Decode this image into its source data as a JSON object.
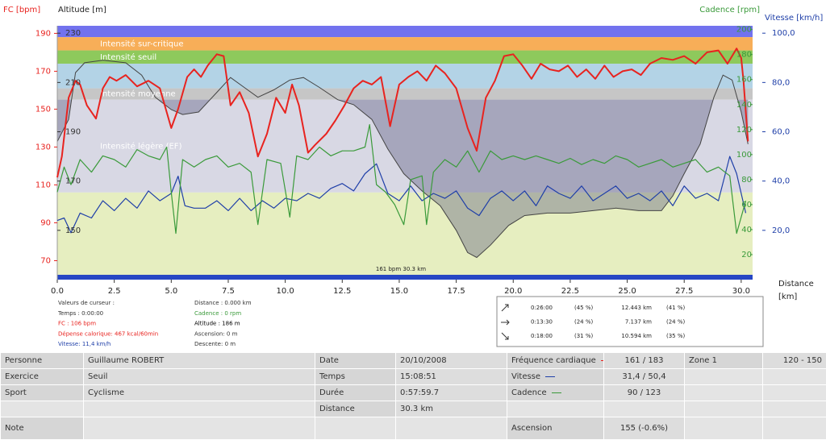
{
  "chart_data": {
    "type": "line",
    "ylabel": "FC [bpm]",
    "y2label": "Altitude [m]",
    "y3label": "Cadence [rpm]",
    "y4label": "Vitesse [km/h]",
    "xlabel": "Distance",
    "xunit": "[km]",
    "annotation": "161 bpm 30.3 km",
    "xlim": [
      0,
      30.5
    ],
    "xticks": [
      {
        "value": 0,
        "label": "0.0"
      },
      2.5,
      {
        "value": 5,
        "label": "5.0"
      },
      7.5,
      {
        "value": 10,
        "label": "10.0"
      },
      12.5,
      {
        "value": 15,
        "label": "15.0"
      },
      17.5,
      {
        "value": 20,
        "label": "20.0"
      },
      22.5,
      {
        "value": 25,
        "label": "25.0"
      },
      27.5,
      {
        "value": 30,
        "label": "30.0"
      }
    ],
    "ylim": [
      60,
      194
    ],
    "yticks": [
      190,
      170,
      150,
      130,
      110,
      90,
      70
    ],
    "y2lim": [
      130,
      233
    ],
    "y2ticks": [
      230,
      210,
      190,
      170,
      150
    ],
    "y3lim": [
      0,
      203
    ],
    "y3ticks": [
      200,
      180,
      160,
      140,
      120,
      100,
      80,
      60,
      40,
      20
    ],
    "y4lim": [
      0,
      103
    ],
    "y4ticks": [
      {
        "value": 100,
        "label": "100,0"
      },
      {
        "value": 80,
        "label": "80,0"
      },
      {
        "value": 60,
        "label": "60,0"
      },
      {
        "value": 40,
        "label": "40,0"
      },
      {
        "value": 20,
        "label": "20,0"
      }
    ],
    "zones": [
      {
        "from": 188,
        "to": 194,
        "color": "#7272ee"
      },
      {
        "from": 181,
        "to": 188,
        "color": "#f7ae58",
        "label": "Intensité sur-critique"
      },
      {
        "from": 174,
        "to": 181,
        "color": "#8ec95c",
        "label": "Intensité seuil"
      },
      {
        "from": 161,
        "to": 174,
        "color": "#b3d3e6"
      },
      {
        "from": 155,
        "to": 161,
        "color": "#c6c6c6",
        "label": "Intensité moyenne"
      },
      {
        "from": 106,
        "to": 155,
        "color": "#d8d8e4",
        "label": "Intensité légère (EF)"
      },
      {
        "from": 60,
        "to": 106,
        "color": "#e6eec0"
      }
    ],
    "series": [
      {
        "name": "Fréquence cardiaque",
        "color": "#e8231f",
        "axis": "y",
        "x": [
          0,
          0.2,
          0.5,
          0.8,
          1,
          1.3,
          1.7,
          2,
          2.3,
          2.6,
          3,
          3.5,
          4,
          4.5,
          5,
          5.3,
          5.7,
          6,
          6.3,
          6.6,
          7,
          7.3,
          7.6,
          8,
          8.4,
          8.8,
          9.2,
          9.6,
          10,
          10.3,
          10.6,
          11,
          11.3,
          11.8,
          12.2,
          12.6,
          13,
          13.4,
          13.8,
          14.2,
          14.6,
          15,
          15.4,
          15.8,
          16.2,
          16.6,
          17,
          17.5,
          18,
          18.4,
          18.8,
          19.2,
          19.6,
          20,
          20.4,
          20.8,
          21.2,
          21.6,
          22,
          22.4,
          22.8,
          23.2,
          23.6,
          24,
          24.4,
          24.8,
          25.2,
          25.6,
          26,
          26.5,
          27,
          27.5,
          28,
          28.5,
          29,
          29.4,
          29.8,
          30,
          30.1,
          30.3
        ],
        "values": [
          114,
          125,
          156,
          165,
          163,
          152,
          145,
          161,
          167,
          165,
          168,
          162,
          165,
          161,
          140,
          150,
          167,
          171,
          167,
          173,
          179,
          178,
          152,
          159,
          148,
          125,
          137,
          156,
          148,
          163,
          152,
          127,
          131,
          137,
          144,
          152,
          161,
          165,
          163,
          167,
          141,
          163,
          167,
          170,
          165,
          173,
          169,
          161,
          140,
          128,
          156,
          165,
          178,
          179,
          173,
          166,
          174,
          171,
          170,
          173,
          167,
          171,
          166,
          173,
          167,
          170,
          171,
          168,
          174,
          177,
          176,
          178,
          174,
          180,
          181,
          174,
          182,
          177,
          165,
          133
        ]
      },
      {
        "name": "Vitesse",
        "color": "#1f3fa8",
        "axis": "y4",
        "x": [
          0,
          0.3,
          0.6,
          1,
          1.5,
          2,
          2.5,
          3,
          3.5,
          4,
          4.5,
          5,
          5.3,
          5.6,
          6,
          6.5,
          7,
          7.5,
          8,
          8.5,
          9,
          9.5,
          10,
          10.5,
          11,
          11.5,
          12,
          12.5,
          13,
          13.5,
          14,
          14.5,
          15,
          15.5,
          16,
          16.5,
          17,
          17.5,
          18,
          18.5,
          19,
          19.5,
          20,
          20.5,
          21,
          21.5,
          22,
          22.5,
          23,
          23.5,
          24,
          24.5,
          25,
          25.5,
          26,
          26.5,
          27,
          27.5,
          28,
          28.5,
          29,
          29.5,
          29.8,
          30.2
        ],
        "values": [
          24,
          25,
          19,
          27,
          25,
          32,
          28,
          33,
          29,
          36,
          32,
          35,
          42,
          30,
          29,
          29,
          32,
          28,
          33,
          28,
          32,
          29,
          33,
          32,
          35,
          33,
          37,
          39,
          36,
          43,
          47,
          35,
          32,
          38,
          32,
          35,
          33,
          36,
          29,
          26,
          33,
          36,
          32,
          36,
          30,
          38,
          35,
          33,
          38,
          32,
          35,
          38,
          33,
          35,
          32,
          36,
          30,
          38,
          33,
          35,
          32,
          50,
          43,
          27
        ]
      },
      {
        "name": "Cadence",
        "color": "#3a9a3a",
        "axis": "y3",
        "x": [
          0,
          0.3,
          0.6,
          1,
          1.5,
          2,
          2.5,
          3,
          3.5,
          4,
          4.5,
          4.8,
          5,
          5.2,
          5.5,
          6,
          6.5,
          7,
          7.5,
          8,
          8.5,
          8.8,
          9.2,
          9.8,
          10.2,
          10.5,
          11,
          11.5,
          12,
          12.5,
          13,
          13.5,
          13.7,
          14,
          14.4,
          14.8,
          15.2,
          15.5,
          16,
          16.2,
          16.5,
          17,
          17.5,
          18,
          18.5,
          19,
          19.5,
          20,
          20.5,
          21,
          21.5,
          22,
          22.5,
          23,
          23.5,
          24,
          24.5,
          25,
          25.5,
          26,
          26.5,
          27,
          27.5,
          28,
          28.5,
          29,
          29.5,
          29.8,
          30.2
        ],
        "values": [
          70,
          90,
          76,
          96,
          86,
          99,
          96,
          90,
          104,
          99,
          96,
          106,
          70,
          37,
          96,
          90,
          96,
          99,
          90,
          93,
          86,
          44,
          96,
          93,
          50,
          99,
          96,
          106,
          99,
          103,
          103,
          106,
          124,
          76,
          70,
          60,
          44,
          80,
          83,
          44,
          86,
          96,
          90,
          103,
          86,
          103,
          96,
          99,
          96,
          99,
          96,
          93,
          97,
          92,
          96,
          93,
          99,
          96,
          90,
          93,
          96,
          90,
          93,
          96,
          86,
          90,
          83,
          37,
          63
        ]
      },
      {
        "color": "#444444",
        "axis": "y2",
        "x": [
          0,
          0.5,
          0.8,
          1.2,
          2,
          3,
          3.7,
          4.3,
          5,
          5.5,
          6.2,
          7,
          7.6,
          8.2,
          8.8,
          9.5,
          10.2,
          10.8,
          11.5,
          12.3,
          13,
          13.8,
          14.5,
          15.2,
          16,
          16.8,
          17.5,
          18,
          18.4,
          19,
          19.8,
          20.5,
          21.5,
          22.5,
          23.5,
          24.5,
          25.5,
          26.5,
          27,
          27.5,
          28.2,
          28.8,
          29.2,
          29.6,
          30,
          30.3
        ],
        "values": [
          186,
          195,
          214,
          218,
          219,
          218,
          213,
          204,
          199,
          197,
          198,
          206,
          212,
          208,
          204,
          207,
          211,
          212,
          208,
          203,
          201,
          195,
          183,
          173,
          166,
          160,
          150,
          141,
          139,
          144,
          152,
          156,
          157,
          157,
          158,
          159,
          158,
          158,
          164,
          173,
          185,
          204,
          213,
          211,
          198,
          185
        ]
      }
    ]
  },
  "cursor_panel": {
    "left": [
      {
        "text": "Valeurs de curseur :",
        "color": "#333333"
      },
      {
        "text": "Temps : 0:00:00",
        "color": "#333333"
      },
      {
        "text": "FC : 106 bpm",
        "color": "#e8231f"
      },
      {
        "text": "Dépense calorique: 467 kcal/60min",
        "color": "#e8231f"
      },
      {
        "text": "Vitesse: 11,4 km/h",
        "color": "#1f3fa8"
      }
    ],
    "right": [
      {
        "text": "Distance : 0.000 km",
        "color": "#333333"
      },
      {
        "text": "Cadence : 0 rpm",
        "color": "#3a9a3a"
      },
      {
        "text": "Altitude : 186 m",
        "color": "#000000"
      },
      {
        "text": "Ascension: 0 m",
        "color": "#333333"
      },
      {
        "text": "Descente: 0 m",
        "color": "#333333"
      }
    ]
  },
  "summary": [
    [
      "0:26:00",
      "(45 %)",
      "12.443 km",
      "(41 %)"
    ],
    [
      "0:13:30",
      "(24 %)",
      "7.137 km",
      "(24 %)"
    ],
    [
      "0:18:00",
      "(31 %)",
      "10.594 km",
      "(35 %)"
    ]
  ],
  "table": {
    "rows": [
      [
        "Personne",
        "Guillaume ROBERT",
        "Date",
        "20/10/2008",
        null,
        "161 / 183",
        "Zone 1",
        "120 - 150"
      ],
      [
        "Exercice",
        "Seuil",
        "Temps",
        "15:08:51",
        null,
        "31,4 / 50,4",
        null,
        null
      ],
      [
        "Sport",
        "Cyclisme",
        "Durée",
        "0:57:59.7",
        null,
        "90 / 123",
        null,
        null
      ],
      [
        null,
        null,
        "Distance",
        "30.3 km",
        null,
        null,
        null,
        null
      ],
      [
        "Note",
        null,
        null,
        null,
        "Ascension",
        "155 (-0.6%)",
        null,
        null
      ]
    ]
  }
}
